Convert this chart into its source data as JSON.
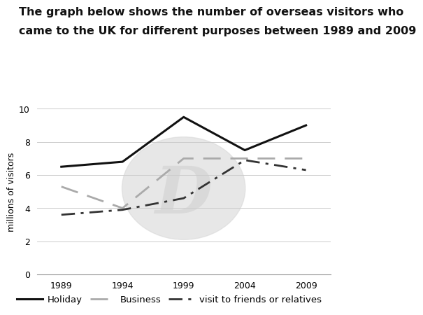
{
  "title_line1": "The graph below shows the number of overseas visitors who",
  "title_line2": "came to the UK for different purposes between 1989 and 2009",
  "ylabel": "millions of visitors",
  "years": [
    1989,
    1994,
    1999,
    2004,
    2009
  ],
  "holiday": [
    6.5,
    6.8,
    9.5,
    7.5,
    9.0
  ],
  "business": [
    5.3,
    4.0,
    7.0,
    7.0,
    7.0
  ],
  "friends": [
    3.6,
    3.9,
    4.6,
    6.9,
    6.3
  ],
  "holiday_color": "#111111",
  "business_color": "#aaaaaa",
  "friends_color": "#333333",
  "ylim": [
    0,
    10
  ],
  "yticks": [
    0,
    2,
    4,
    6,
    8,
    10
  ],
  "xticks": [
    1989,
    1994,
    1999,
    2004,
    2009
  ],
  "legend_holiday": "Holiday",
  "legend_business": "Business",
  "legend_friends": "visit to friends or relatives",
  "title_fontsize": 11.5,
  "axis_fontsize": 9,
  "legend_fontsize": 9.5,
  "bg_color": "#ffffff",
  "grid_color": "#cccccc",
  "watermark_color": "#d8d8d8"
}
